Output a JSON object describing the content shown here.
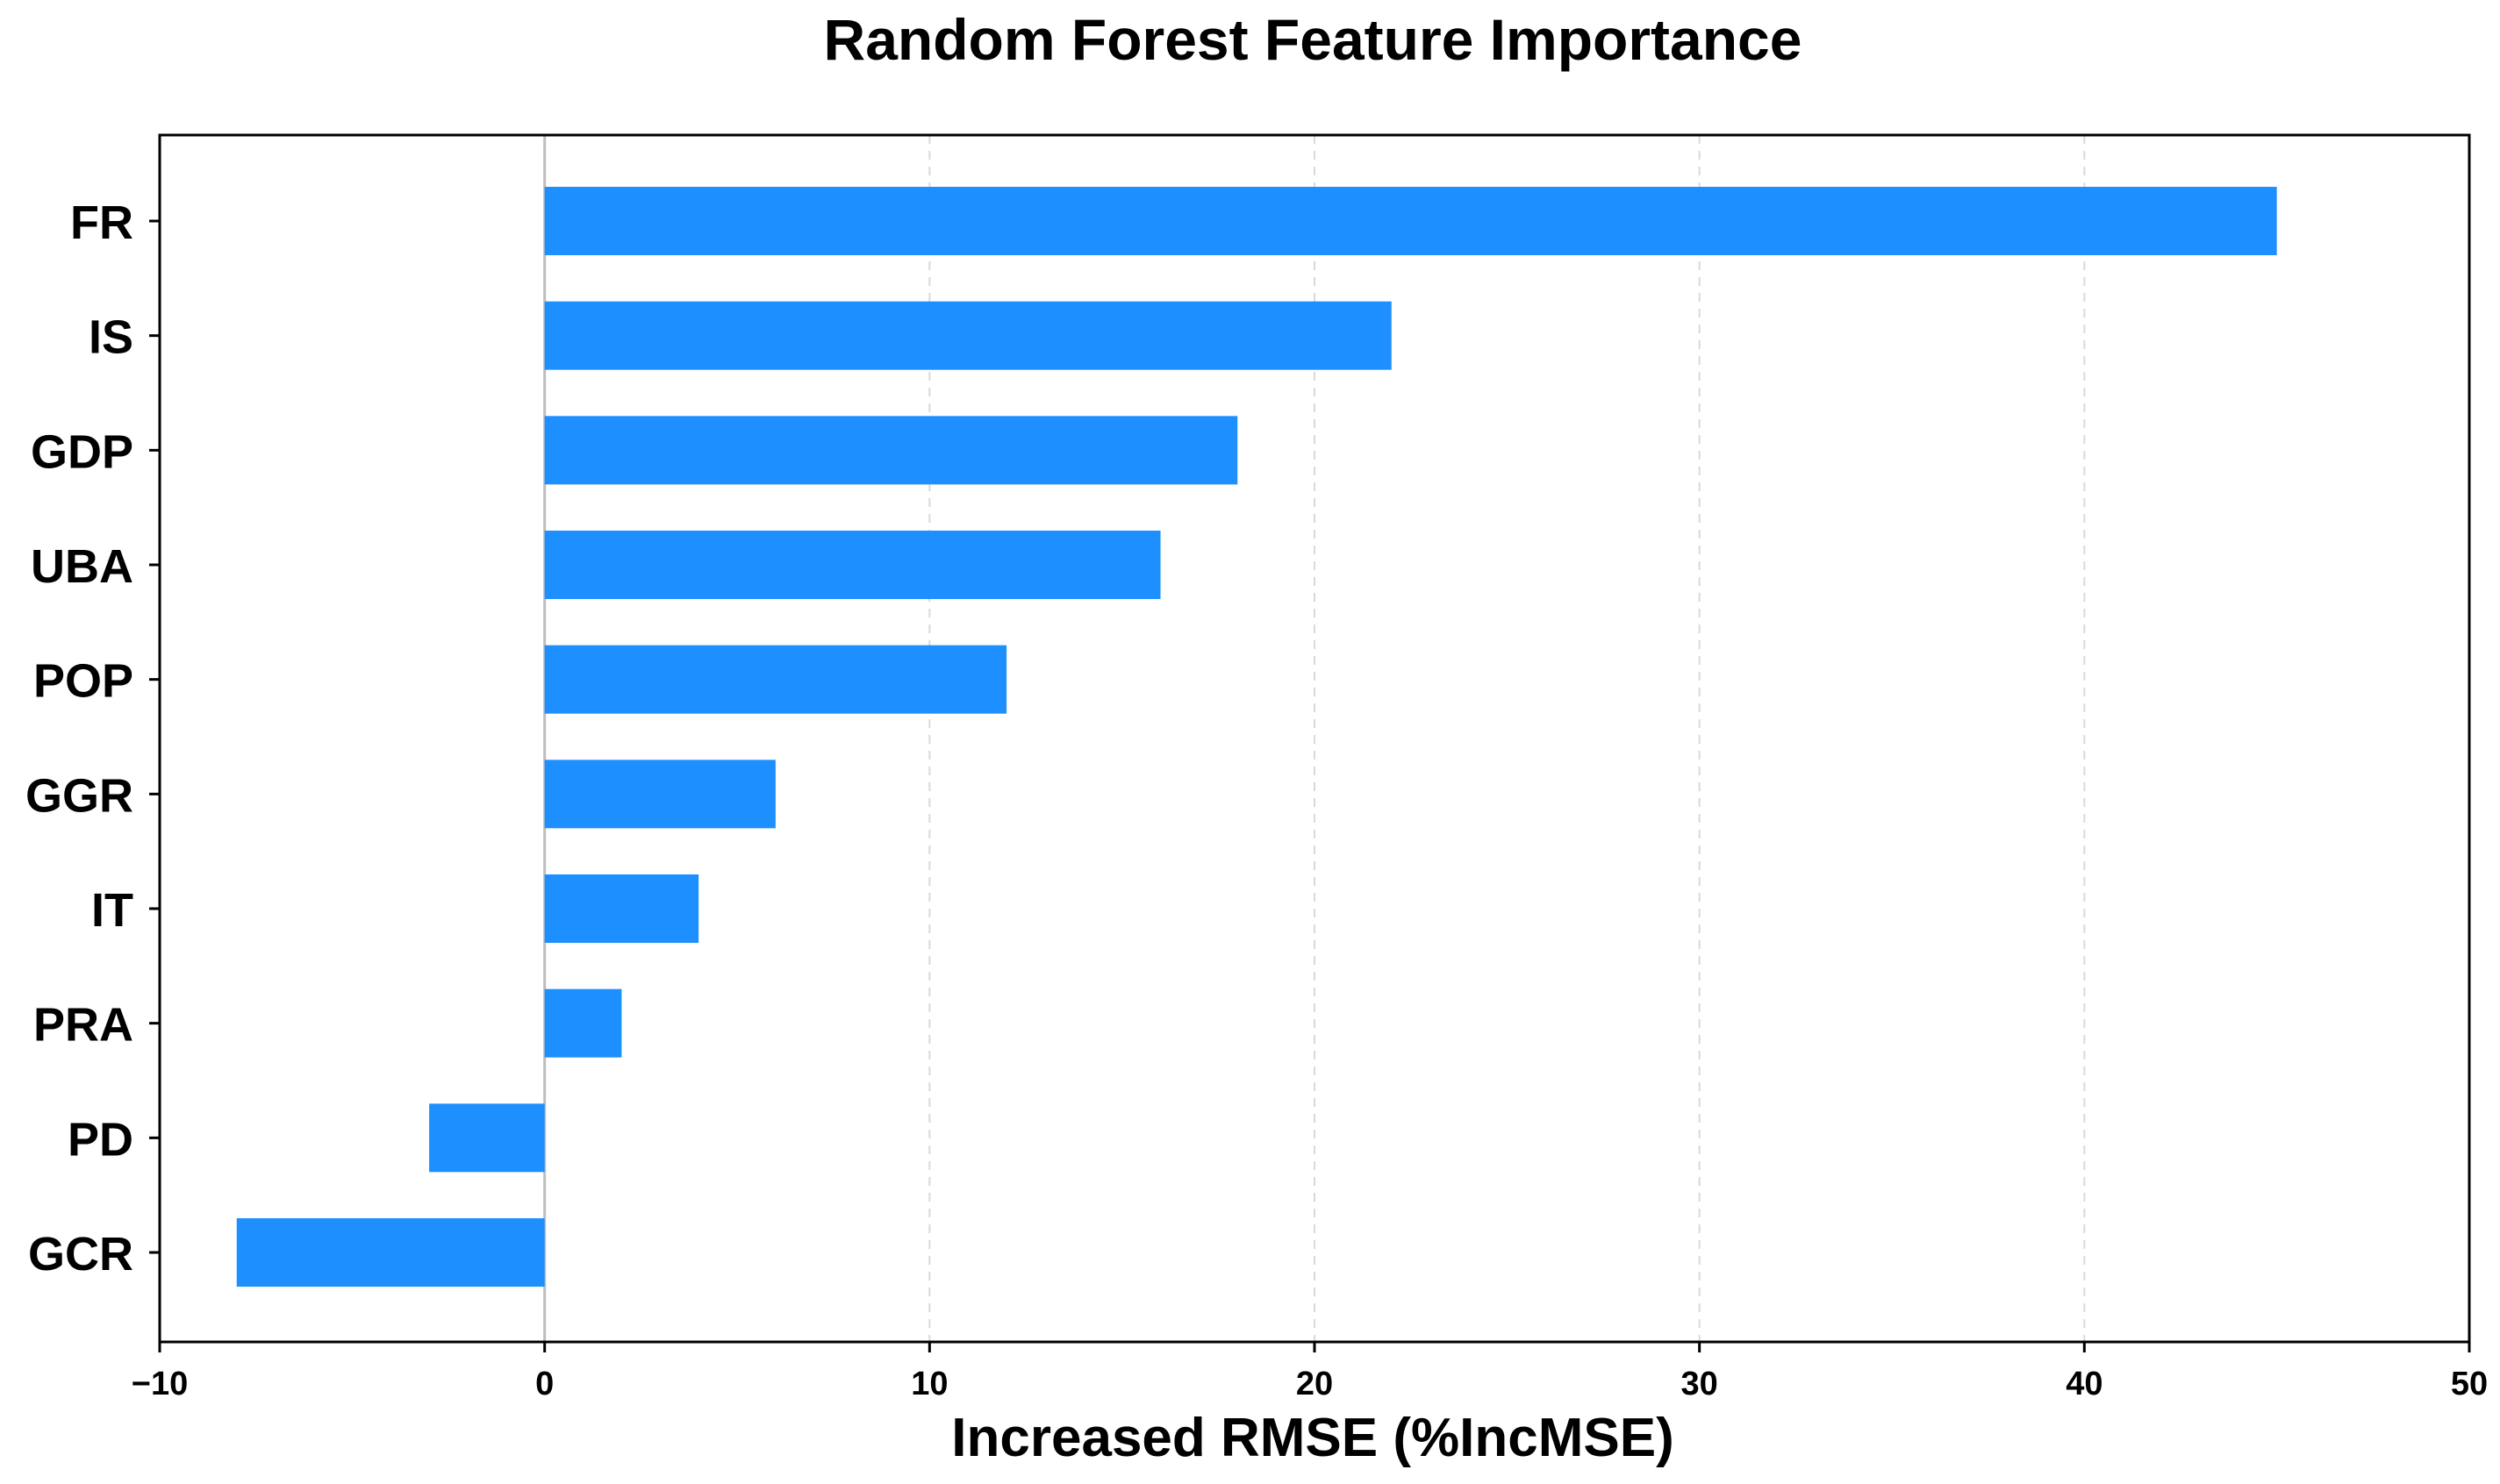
{
  "chart_data": {
    "type": "bar",
    "orientation": "horizontal",
    "title": "Random Forest Feature Importance",
    "xlabel": "Increased RMSE (%IncMSE)",
    "ylabel": "",
    "categories": [
      "FR",
      "IS",
      "GDP",
      "UBA",
      "POP",
      "GGR",
      "IT",
      "PRA",
      "PD",
      "GCR"
    ],
    "values": [
      45,
      22,
      18,
      16,
      12,
      6,
      4,
      2,
      -3,
      -8
    ],
    "xlim": [
      -10,
      50
    ],
    "xticks": [
      -10,
      0,
      10,
      20,
      30,
      40,
      50
    ],
    "xtick_labels": [
      "−10",
      "0",
      "10",
      "20",
      "30",
      "40",
      "50"
    ],
    "grid": "vertical dashed",
    "zero_line": true,
    "bar_color": "#1e8fff"
  }
}
